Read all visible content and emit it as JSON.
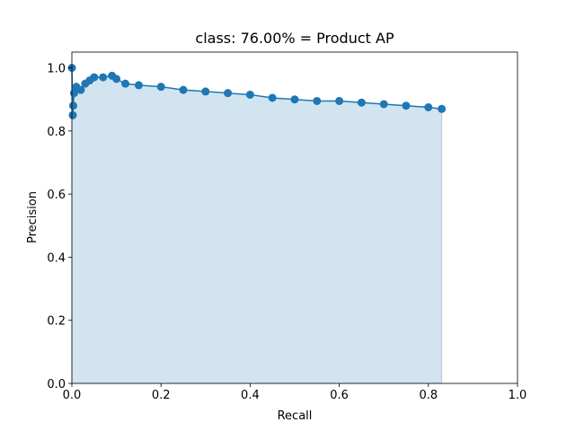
{
  "chart_data": {
    "type": "line",
    "title": "class: 76.00% = Product AP",
    "x_label": "Recall",
    "y_label": "Precision",
    "x": [
      0,
      0.002,
      0.003,
      0.005,
      0.01,
      0.02,
      0.03,
      0.04,
      0.05,
      0.07,
      0.09,
      0.1,
      0.12,
      0.15,
      0.2,
      0.25,
      0.3,
      0.35,
      0.4,
      0.45,
      0.5,
      0.55,
      0.6,
      0.65,
      0.7,
      0.75,
      0.8,
      0.83
    ],
    "values": [
      1.0,
      0.85,
      0.88,
      0.92,
      0.94,
      0.93,
      0.95,
      0.96,
      0.97,
      0.97,
      0.975,
      0.965,
      0.95,
      0.945,
      0.94,
      0.93,
      0.925,
      0.92,
      0.915,
      0.905,
      0.9,
      0.895,
      0.895,
      0.89,
      0.885,
      0.88,
      0.875,
      0.87
    ],
    "color": "#1f77b4",
    "marker": true,
    "fill": true,
    "xlim": [
      0,
      1
    ],
    "ylim": [
      0,
      1.05
    ],
    "xticks": [
      {
        "value": 0,
        "label": "0.0"
      },
      0.2,
      0.4,
      0.6,
      0.8,
      {
        "value": 1,
        "label": "1.0"
      }
    ],
    "yticks": [
      {
        "value": 0,
        "label": "0.0"
      },
      0.2,
      0.4,
      0.6,
      0.8,
      {
        "value": 1,
        "label": "1.0"
      }
    ]
  }
}
